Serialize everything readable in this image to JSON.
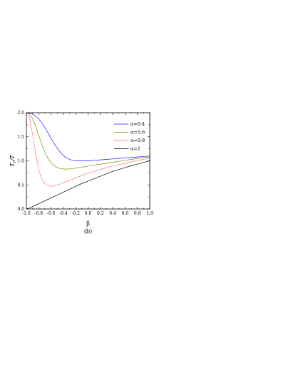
{
  "chart_data": {
    "type": "line",
    "title": "",
    "xlabel": "β",
    "ylabel": "T_r/T",
    "caption": "(b)",
    "xlim": [
      -1.0,
      1.0
    ],
    "ylim": [
      0.0,
      2.0
    ],
    "x_ticks": [
      -1.0,
      -0.8,
      -0.6,
      -0.4,
      -0.2,
      0.0,
      0.2,
      0.4,
      0.6,
      0.8,
      1.0
    ],
    "x_tick_labels": [
      "-1.0",
      "-0.8",
      "-0.6",
      "-0.4",
      "-0.2",
      "0.0",
      "0.2",
      "0.4",
      "0.6",
      "0.8",
      "1.0"
    ],
    "y_ticks": [
      0.0,
      0.5,
      1.0,
      1.5,
      2.0
    ],
    "y_tick_labels": [
      "0.0",
      "0.5",
      "1.0",
      "1.5",
      "2.0"
    ],
    "grid": false,
    "legend_position": "top-right",
    "x": [
      -1.0,
      -0.95,
      -0.9,
      -0.85,
      -0.8,
      -0.75,
      -0.7,
      -0.65,
      -0.6,
      -0.55,
      -0.5,
      -0.45,
      -0.4,
      -0.35,
      -0.3,
      -0.25,
      -0.2,
      -0.15,
      -0.1,
      -0.05,
      0.0,
      0.1,
      0.2,
      0.3,
      0.4,
      0.5,
      0.6,
      0.7,
      0.8,
      0.9,
      1.0
    ],
    "series": [
      {
        "name": "α=0.4",
        "color": "#1a1aff",
        "dash": "solid",
        "values": [
          2.0,
          1.99,
          1.97,
          1.93,
          1.87,
          1.79,
          1.69,
          1.58,
          1.47,
          1.36,
          1.26,
          1.18,
          1.11,
          1.06,
          1.03,
          1.01,
          1.0,
          1.0,
          1.0,
          1.0,
          1.0,
          1.01,
          1.02,
          1.03,
          1.04,
          1.05,
          1.06,
          1.07,
          1.08,
          1.09,
          1.1
        ]
      },
      {
        "name": "α=0.6",
        "color": "#8a8a00",
        "dash": "solid",
        "values": [
          2.0,
          1.97,
          1.88,
          1.72,
          1.53,
          1.34,
          1.18,
          1.05,
          0.96,
          0.9,
          0.86,
          0.84,
          0.83,
          0.83,
          0.83,
          0.84,
          0.85,
          0.86,
          0.87,
          0.88,
          0.89,
          0.91,
          0.93,
          0.95,
          0.97,
          0.99,
          1.01,
          1.03,
          1.05,
          1.07,
          1.08
        ]
      },
      {
        "name": "α=0.8",
        "color": "#ff2020",
        "dash": "dashed",
        "values": [
          2.0,
          1.9,
          1.55,
          1.15,
          0.82,
          0.62,
          0.52,
          0.48,
          0.47,
          0.48,
          0.5,
          0.52,
          0.55,
          0.57,
          0.6,
          0.62,
          0.65,
          0.67,
          0.7,
          0.72,
          0.74,
          0.78,
          0.82,
          0.86,
          0.89,
          0.92,
          0.95,
          0.98,
          1.01,
          1.03,
          1.05
        ]
      },
      {
        "name": "α=1",
        "color": "#000000",
        "dash": "solid",
        "values": [
          0.0,
          0.02,
          0.05,
          0.08,
          0.11,
          0.14,
          0.17,
          0.2,
          0.23,
          0.26,
          0.29,
          0.32,
          0.35,
          0.38,
          0.41,
          0.44,
          0.47,
          0.5,
          0.53,
          0.55,
          0.58,
          0.63,
          0.68,
          0.73,
          0.78,
          0.82,
          0.86,
          0.9,
          0.93,
          0.97,
          1.0
        ]
      }
    ]
  }
}
